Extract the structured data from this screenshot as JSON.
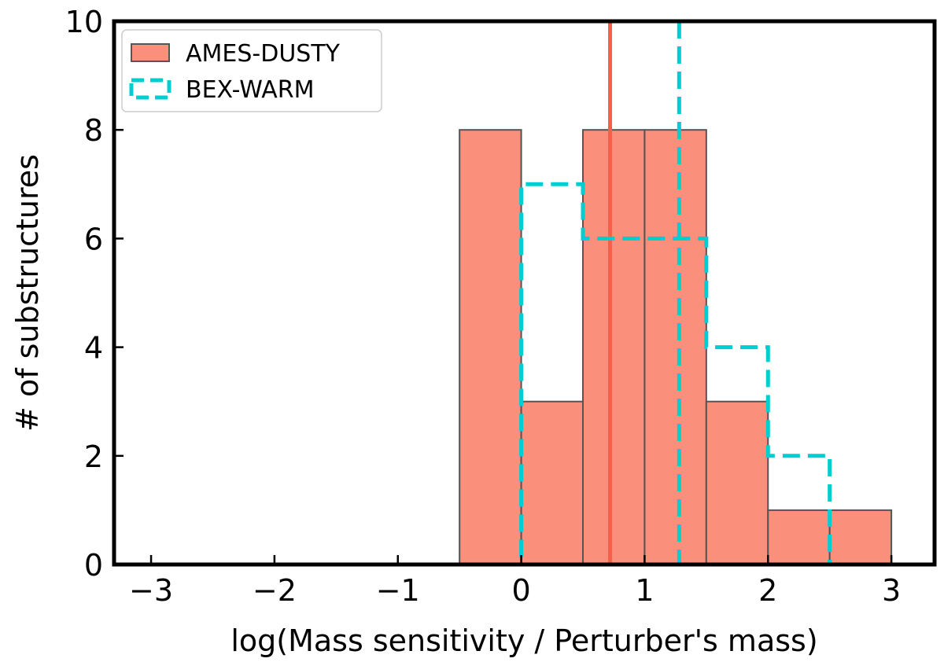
{
  "chart_data": {
    "type": "bar",
    "xlabel": "log(Mass sensitivity / Perturber's mass)",
    "ylabel": "# of substructures",
    "xlim": [
      -3.3,
      3.35
    ],
    "ylim": [
      0,
      10
    ],
    "xticks": [
      -3,
      -2,
      -1,
      0,
      1,
      2,
      3
    ],
    "xtick_labels": [
      "−3",
      "−2",
      "−1",
      "0",
      "1",
      "2",
      "3"
    ],
    "yticks": [
      0,
      2,
      4,
      6,
      8,
      10
    ],
    "ytick_labels": [
      "0",
      "2",
      "4",
      "6",
      "8",
      "10"
    ],
    "grid": false,
    "legend_position": "top-left",
    "series": [
      {
        "name": "AMES-DUSTY",
        "style": "filled-histogram",
        "color": "#FA8F7B",
        "edge_color": "#555555",
        "bin_edges": [
          -3,
          -2.5,
          -2,
          -1.5,
          -1,
          -0.5,
          0,
          0.5,
          1,
          1.5,
          2,
          2.5,
          3
        ],
        "values": [
          0,
          0,
          0,
          0,
          0,
          8,
          3,
          8,
          8,
          3,
          1,
          1
        ],
        "marker_line": 0.72,
        "marker_color": "#F4614A"
      },
      {
        "name": "BEX-WARM",
        "style": "step-dashed",
        "color": "#00CED1",
        "bin_edges": [
          -3,
          -2.5,
          -2,
          -1.5,
          -1,
          -0.5,
          0,
          0.5,
          1,
          1.5,
          2,
          2.5,
          3
        ],
        "values": [
          0,
          0,
          0,
          0,
          0,
          0,
          7,
          6,
          6,
          4,
          2,
          0
        ],
        "marker_line": 1.28,
        "marker_color": "#00CED1"
      }
    ]
  }
}
